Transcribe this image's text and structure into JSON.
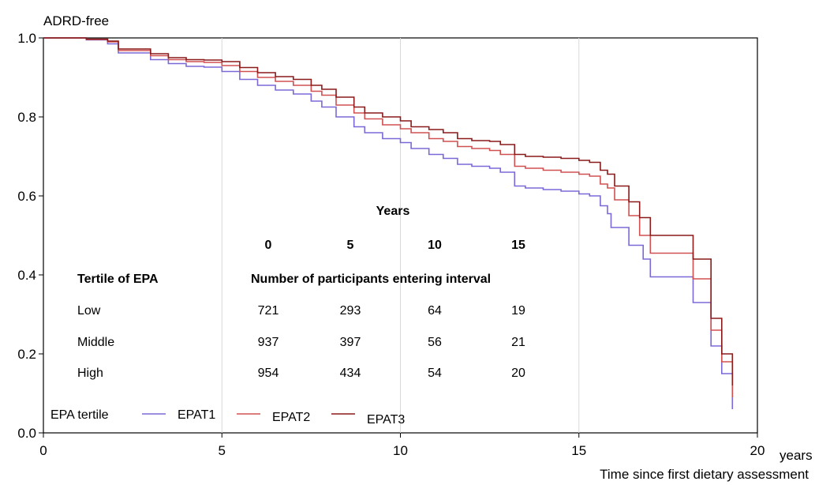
{
  "chart_data": {
    "type": "line",
    "ylabel": "ADRD-free",
    "xlabel": "Time since first dietary assessment",
    "x_unit": "years",
    "xlim": [
      0,
      20
    ],
    "ylim": [
      0.0,
      1.0
    ],
    "x_ticks": [
      "0",
      "5",
      "10",
      "15",
      "20"
    ],
    "y_ticks": [
      "0.0",
      "0.2",
      "0.4",
      "0.6",
      "0.8",
      "1.0"
    ],
    "x_tick_values": [
      0,
      5,
      10,
      15,
      20
    ],
    "y_tick_values": [
      0,
      0.2,
      0.4,
      0.6,
      0.8,
      1.0
    ],
    "grid": "vertical",
    "legend": {
      "title": "EPA tertile",
      "placement": "bottom-left"
    },
    "series": [
      {
        "name": "EPAT1",
        "color": "#7b68d6",
        "points": [
          [
            0,
            1.0
          ],
          [
            1.2,
            0.995
          ],
          [
            1.8,
            0.985
          ],
          [
            2.1,
            0.962
          ],
          [
            3.0,
            0.945
          ],
          [
            3.5,
            0.935
          ],
          [
            4.0,
            0.928
          ],
          [
            4.5,
            0.926
          ],
          [
            5.0,
            0.915
          ],
          [
            5.5,
            0.895
          ],
          [
            6.0,
            0.88
          ],
          [
            6.5,
            0.868
          ],
          [
            7.0,
            0.858
          ],
          [
            7.5,
            0.84
          ],
          [
            7.8,
            0.825
          ],
          [
            8.2,
            0.8
          ],
          [
            8.7,
            0.775
          ],
          [
            9.0,
            0.76
          ],
          [
            9.5,
            0.745
          ],
          [
            10.0,
            0.735
          ],
          [
            10.3,
            0.72
          ],
          [
            10.8,
            0.705
          ],
          [
            11.2,
            0.695
          ],
          [
            11.6,
            0.68
          ],
          [
            12.0,
            0.675
          ],
          [
            12.5,
            0.67
          ],
          [
            12.8,
            0.66
          ],
          [
            13.2,
            0.625
          ],
          [
            13.5,
            0.62
          ],
          [
            14.0,
            0.616
          ],
          [
            14.5,
            0.612
          ],
          [
            15.0,
            0.605
          ],
          [
            15.3,
            0.6
          ],
          [
            15.6,
            0.575
          ],
          [
            15.8,
            0.555
          ],
          [
            15.9,
            0.52
          ],
          [
            16.4,
            0.475
          ],
          [
            16.8,
            0.44
          ],
          [
            17.0,
            0.395
          ],
          [
            18.2,
            0.33
          ],
          [
            18.7,
            0.22
          ],
          [
            19.0,
            0.15
          ],
          [
            19.3,
            0.06
          ]
        ]
      },
      {
        "name": "EPAT2",
        "color": "#d05050",
        "points": [
          [
            0,
            1.0
          ],
          [
            1.2,
            0.996
          ],
          [
            1.8,
            0.99
          ],
          [
            2.1,
            0.968
          ],
          [
            3.0,
            0.955
          ],
          [
            3.5,
            0.945
          ],
          [
            4.0,
            0.94
          ],
          [
            4.5,
            0.938
          ],
          [
            5.0,
            0.93
          ],
          [
            5.5,
            0.915
          ],
          [
            6.0,
            0.9
          ],
          [
            6.5,
            0.89
          ],
          [
            7.0,
            0.88
          ],
          [
            7.5,
            0.865
          ],
          [
            7.8,
            0.855
          ],
          [
            8.2,
            0.83
          ],
          [
            8.7,
            0.81
          ],
          [
            9.0,
            0.795
          ],
          [
            9.5,
            0.78
          ],
          [
            10.0,
            0.77
          ],
          [
            10.3,
            0.76
          ],
          [
            10.8,
            0.745
          ],
          [
            11.2,
            0.738
          ],
          [
            11.6,
            0.725
          ],
          [
            12.0,
            0.72
          ],
          [
            12.5,
            0.715
          ],
          [
            12.8,
            0.705
          ],
          [
            13.2,
            0.675
          ],
          [
            13.5,
            0.67
          ],
          [
            14.0,
            0.665
          ],
          [
            14.5,
            0.66
          ],
          [
            15.0,
            0.655
          ],
          [
            15.3,
            0.65
          ],
          [
            15.6,
            0.63
          ],
          [
            15.8,
            0.62
          ],
          [
            16.0,
            0.59
          ],
          [
            16.4,
            0.55
          ],
          [
            16.7,
            0.5
          ],
          [
            17.0,
            0.455
          ],
          [
            18.2,
            0.39
          ],
          [
            18.7,
            0.26
          ],
          [
            19.0,
            0.18
          ],
          [
            19.3,
            0.09
          ]
        ]
      },
      {
        "name": "EPAT3",
        "color": "#8b1a1a",
        "points": [
          [
            0,
            1.0
          ],
          [
            1.2,
            0.997
          ],
          [
            1.8,
            0.992
          ],
          [
            2.1,
            0.972
          ],
          [
            3.0,
            0.96
          ],
          [
            3.5,
            0.95
          ],
          [
            4.0,
            0.945
          ],
          [
            4.5,
            0.944
          ],
          [
            5.0,
            0.94
          ],
          [
            5.5,
            0.925
          ],
          [
            6.0,
            0.912
          ],
          [
            6.5,
            0.902
          ],
          [
            7.0,
            0.895
          ],
          [
            7.5,
            0.88
          ],
          [
            7.8,
            0.87
          ],
          [
            8.2,
            0.85
          ],
          [
            8.7,
            0.825
          ],
          [
            9.0,
            0.81
          ],
          [
            9.5,
            0.8
          ],
          [
            10.0,
            0.79
          ],
          [
            10.3,
            0.775
          ],
          [
            10.8,
            0.768
          ],
          [
            11.2,
            0.76
          ],
          [
            11.6,
            0.745
          ],
          [
            12.0,
            0.74
          ],
          [
            12.5,
            0.738
          ],
          [
            12.8,
            0.73
          ],
          [
            13.2,
            0.705
          ],
          [
            13.5,
            0.7
          ],
          [
            14.0,
            0.698
          ],
          [
            14.5,
            0.695
          ],
          [
            15.0,
            0.69
          ],
          [
            15.3,
            0.685
          ],
          [
            15.6,
            0.665
          ],
          [
            15.8,
            0.655
          ],
          [
            16.0,
            0.625
          ],
          [
            16.4,
            0.585
          ],
          [
            16.7,
            0.545
          ],
          [
            17.0,
            0.5
          ],
          [
            18.2,
            0.44
          ],
          [
            18.7,
            0.29
          ],
          [
            19.0,
            0.2
          ],
          [
            19.3,
            0.12
          ]
        ]
      }
    ],
    "risk_table": {
      "title": "Years",
      "years": [
        "0",
        "5",
        "10",
        "15"
      ],
      "row_header": "Tertile of EPA",
      "column_header": "Number of participants entering interval",
      "rows": [
        {
          "label": "Low",
          "values": [
            "721",
            "293",
            "64",
            "19"
          ]
        },
        {
          "label": "Middle",
          "values": [
            "937",
            "397",
            "56",
            "21"
          ]
        },
        {
          "label": "High",
          "values": [
            "954",
            "434",
            "54",
            "20"
          ]
        }
      ]
    }
  }
}
